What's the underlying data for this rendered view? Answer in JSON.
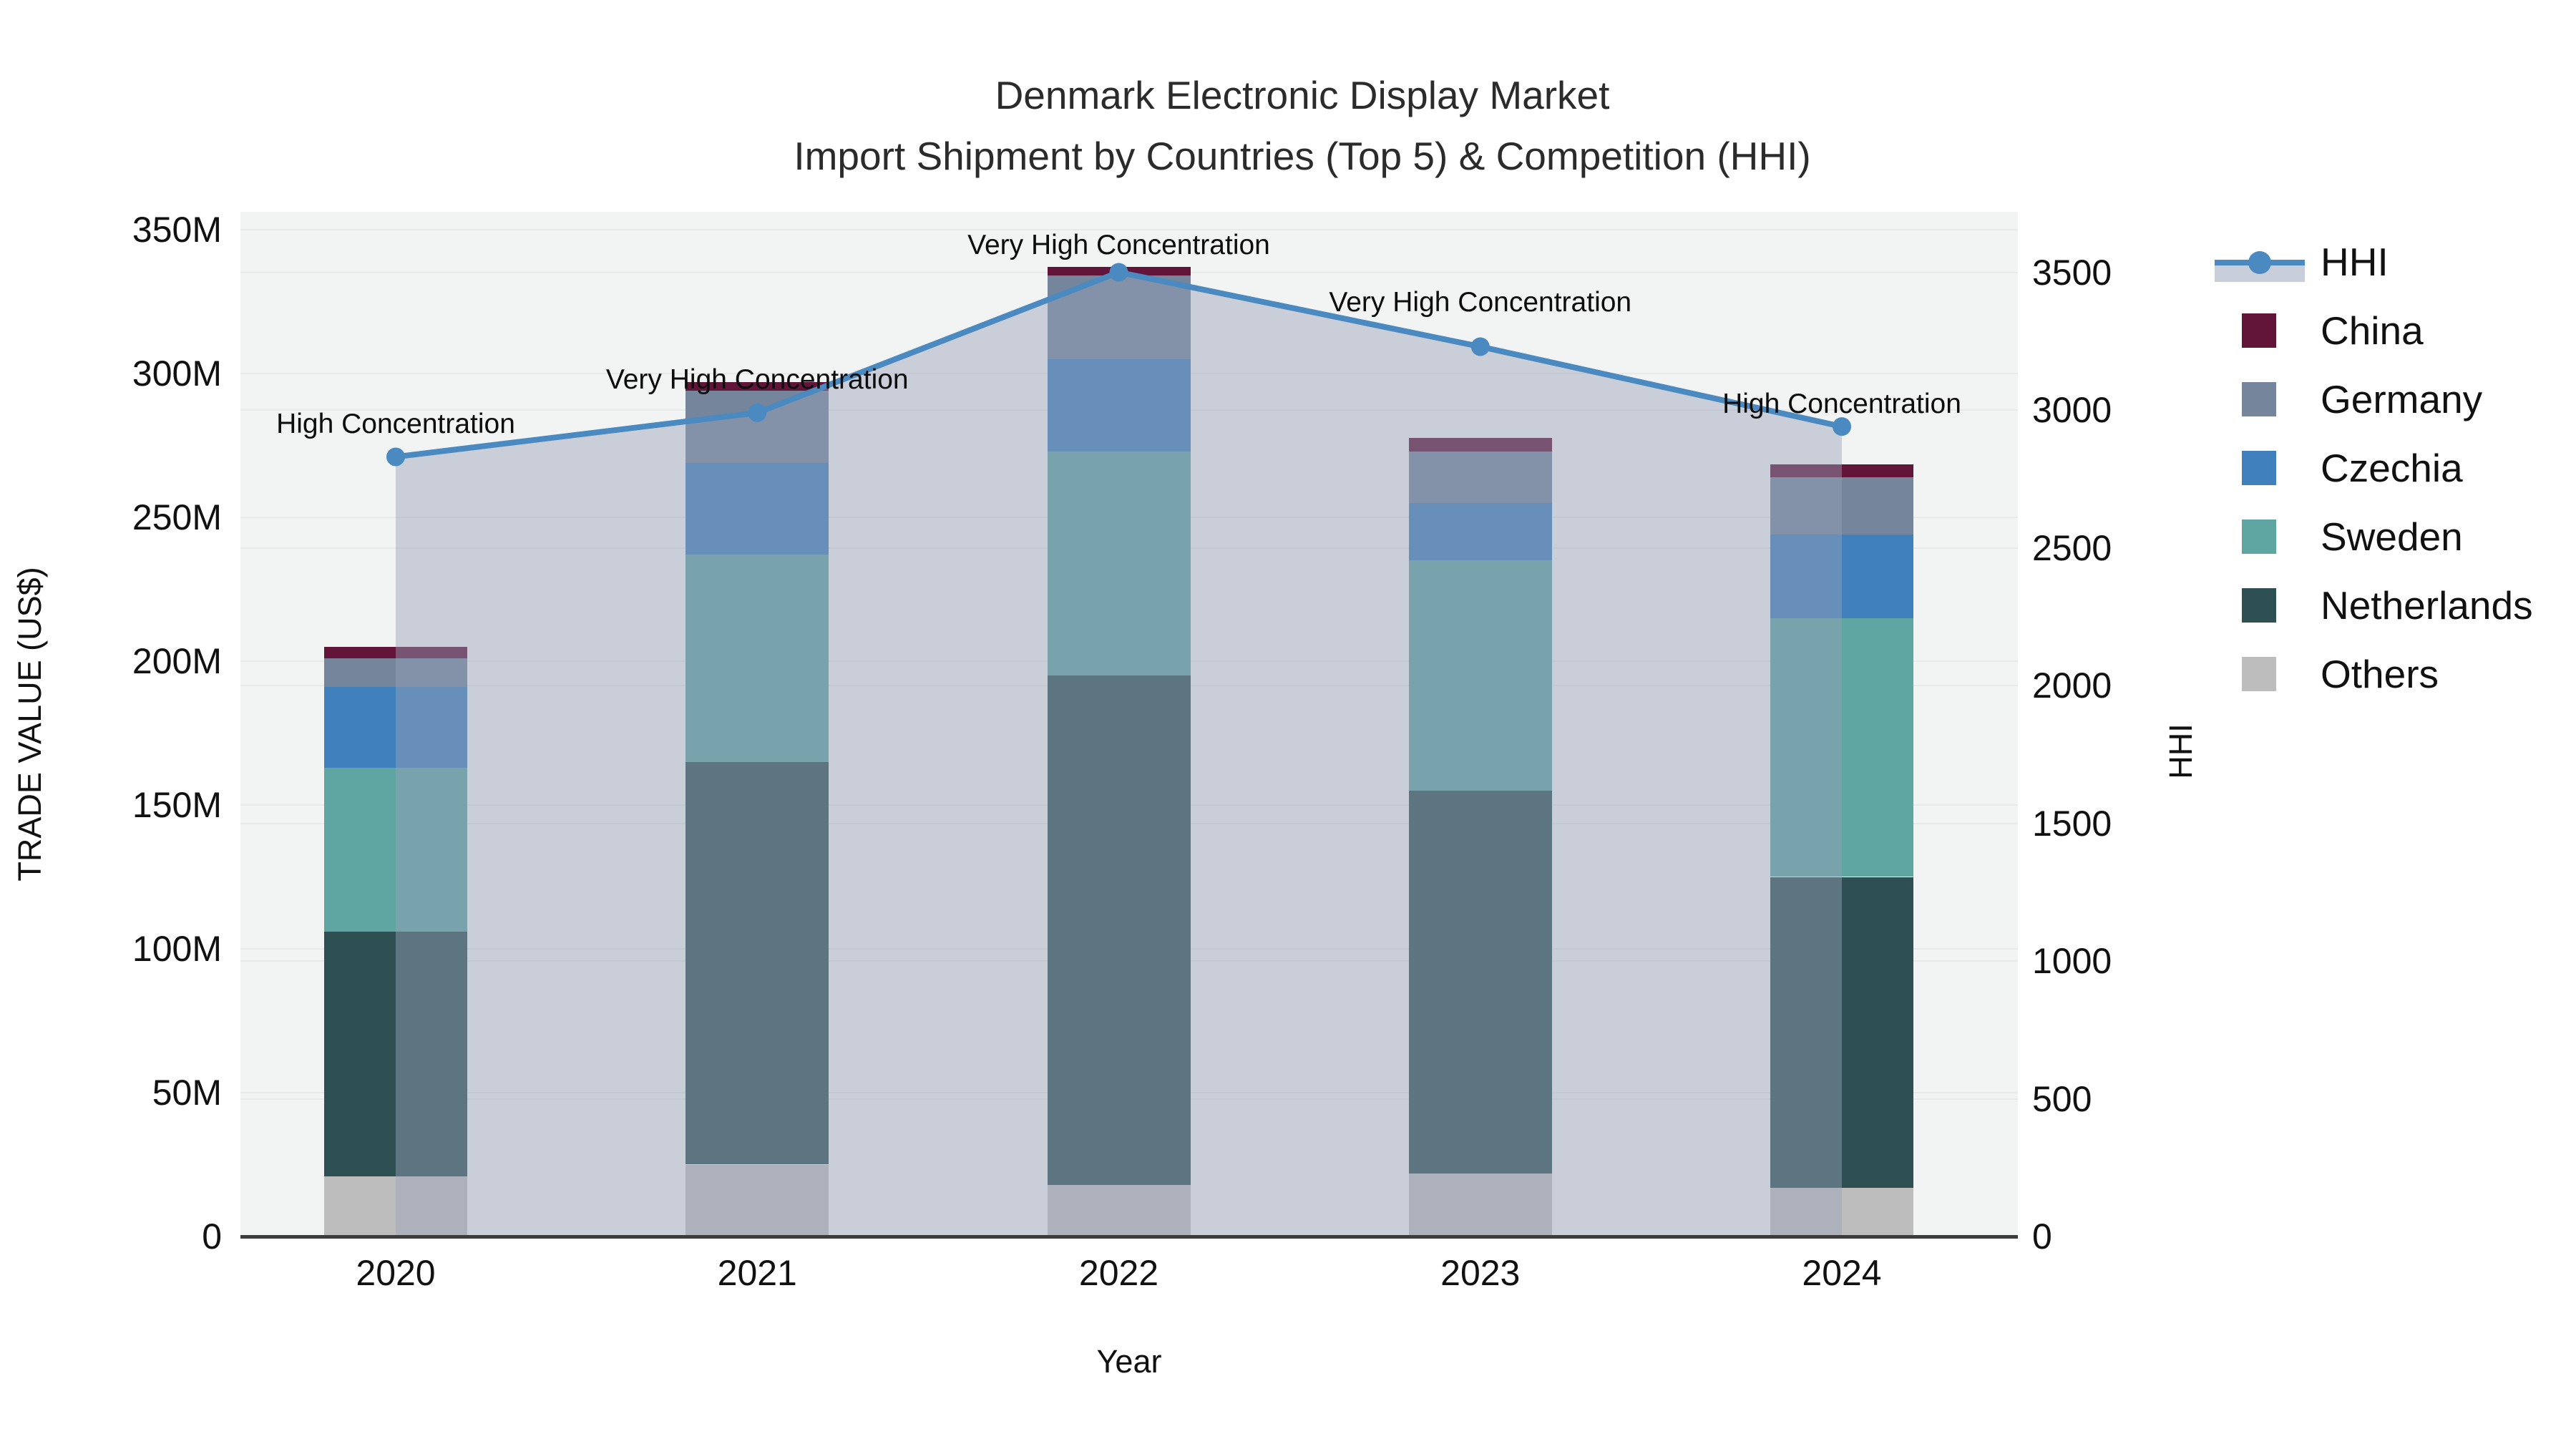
{
  "header": {
    "title_line1": "Denmark Electronic Display Market",
    "title_line2": "Import Shipment by Countries (Top 5) & Competition (HHI)"
  },
  "chart_data": {
    "type": [
      "bar",
      "line"
    ],
    "title": "Denmark Electronic Display Market — Import Shipment by Countries (Top 5) & Competition (HHI)",
    "categories": [
      "2020",
      "2021",
      "2022",
      "2023",
      "2024"
    ],
    "bar_value_unit": "M US$",
    "stack_order_bottom_to_top": [
      "Others",
      "Netherlands",
      "Sweden",
      "Czechia",
      "Germany",
      "China"
    ],
    "series": [
      {
        "name": "Others",
        "type": "bar",
        "color": "#bdbdbd",
        "values": [
          21,
          25,
          18,
          22,
          17
        ]
      },
      {
        "name": "Netherlands",
        "type": "bar",
        "color": "#2f5052",
        "values": [
          85,
          140,
          177,
          133,
          108
        ]
      },
      {
        "name": "Sweden",
        "type": "bar",
        "color": "#5fa5a2",
        "values": [
          57,
          72,
          78,
          80,
          90
        ]
      },
      {
        "name": "Czechia",
        "type": "bar",
        "color": "#4080bc",
        "values": [
          28,
          32,
          32,
          20,
          29
        ]
      },
      {
        "name": "Germany",
        "type": "bar",
        "color": "#74859c",
        "values": [
          10,
          25,
          29,
          18,
          20
        ]
      },
      {
        "name": "China",
        "type": "bar",
        "color": "#621539",
        "values": [
          4,
          3,
          3,
          4.5,
          4.5
        ]
      },
      {
        "name": "HHI",
        "type": "line",
        "color": "#4a8ac1",
        "area_color": "rgba(150,162,185,0.45)",
        "values": [
          2830,
          2990,
          3500,
          3230,
          2940
        ]
      }
    ],
    "bar_totals": [
      205,
      297,
      337,
      277.5,
      268.5
    ],
    "annotations": [
      {
        "category": "2020",
        "text": "High Concentration"
      },
      {
        "category": "2021",
        "text": "Very High Concentration"
      },
      {
        "category": "2022",
        "text": "Very High Concentration"
      },
      {
        "category": "2023",
        "text": "Very High Concentration"
      },
      {
        "category": "2024",
        "text": "High Concentration"
      }
    ],
    "axis_left": {
      "title": "TRADE VALUE (US$)",
      "tick_labels": [
        "0",
        "50M",
        "100M",
        "150M",
        "200M",
        "250M",
        "300M",
        "350M"
      ],
      "tick_values": [
        0,
        50,
        100,
        150,
        200,
        250,
        300,
        350
      ],
      "range_max_visible": 356
    },
    "axis_right": {
      "title": "HHI",
      "tick_labels": [
        "0",
        "500",
        "1000",
        "1500",
        "2000",
        "2500",
        "3000",
        "3500"
      ],
      "tick_values": [
        0,
        500,
        1000,
        1500,
        2000,
        2500,
        3000,
        3500
      ],
      "range_max_visible": 3720
    },
    "axis_x": {
      "title": "Year"
    },
    "legend": {
      "position": "right",
      "entries": [
        "HHI",
        "China",
        "Germany",
        "Czechia",
        "Sweden",
        "Netherlands",
        "Others"
      ]
    },
    "grid": true
  }
}
